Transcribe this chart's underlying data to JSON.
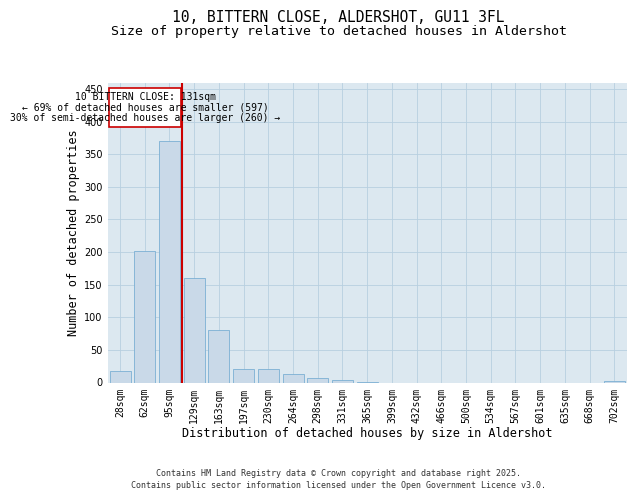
{
  "title_line1": "10, BITTERN CLOSE, ALDERSHOT, GU11 3FL",
  "title_line2": "Size of property relative to detached houses in Aldershot",
  "xlabel": "Distribution of detached houses by size in Aldershot",
  "ylabel": "Number of detached properties",
  "categories": [
    "28sqm",
    "62sqm",
    "95sqm",
    "129sqm",
    "163sqm",
    "197sqm",
    "230sqm",
    "264sqm",
    "298sqm",
    "331sqm",
    "365sqm",
    "399sqm",
    "432sqm",
    "466sqm",
    "500sqm",
    "534sqm",
    "567sqm",
    "601sqm",
    "635sqm",
    "668sqm",
    "702sqm"
  ],
  "values": [
    17,
    202,
    370,
    160,
    80,
    20,
    20,
    13,
    7,
    4,
    1,
    0,
    0,
    0,
    0,
    0,
    0,
    0,
    0,
    0,
    3
  ],
  "bar_color": "#c9d9e8",
  "bar_edge_color": "#7bafd4",
  "annotation_text_line1": "10 BITTERN CLOSE: 131sqm",
  "annotation_text_line2": "← 69% of detached houses are smaller (597)",
  "annotation_text_line3": "30% of semi-detached houses are larger (260) →",
  "annotation_box_color": "#cc0000",
  "ylim": [
    0,
    460
  ],
  "yticks": [
    0,
    50,
    100,
    150,
    200,
    250,
    300,
    350,
    400,
    450
  ],
  "grid_color": "#b8cfe0",
  "background_color": "#dce8f0",
  "footer_line1": "Contains HM Land Registry data © Crown copyright and database right 2025.",
  "footer_line2": "Contains public sector information licensed under the Open Government Licence v3.0.",
  "title_fontsize": 10.5,
  "subtitle_fontsize": 9.5,
  "axis_label_fontsize": 8.5,
  "tick_fontsize": 7,
  "annotation_fontsize": 7,
  "footer_fontsize": 6
}
